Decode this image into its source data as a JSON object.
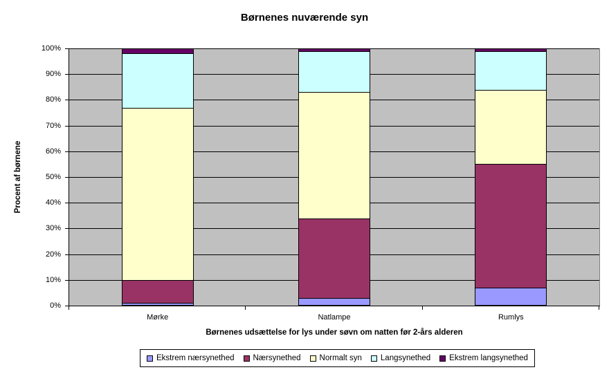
{
  "chart_data": {
    "type": "bar",
    "stacking": "percent",
    "title": "Børnenes nuværende syn",
    "xlabel": "Børnenes udsættelse for lys under søvn om natten før 2-års alderen",
    "ylabel": "Procent af børnene",
    "categories": [
      "Mørke",
      "Natlampe",
      "Rumlys"
    ],
    "series": [
      {
        "name": "Ekstrem nærsynethed",
        "color": "#9999FF",
        "values": [
          1,
          3,
          7
        ]
      },
      {
        "name": "Nærsynethed",
        "color": "#993366",
        "values": [
          9,
          31,
          48
        ]
      },
      {
        "name": "Normalt syn",
        "color": "#FFFFCC",
        "values": [
          67,
          49,
          29
        ]
      },
      {
        "name": "Langsynethed",
        "color": "#CCFFFF",
        "values": [
          21,
          16,
          15
        ]
      },
      {
        "name": "Ekstrem langsynethed",
        "color": "#660066",
        "values": [
          2,
          1,
          1
        ]
      }
    ],
    "ylim": [
      0,
      100
    ],
    "y_tick_step": 10,
    "y_tick_suffix": "%",
    "y_tick_labels": [
      "0%",
      "10%",
      "20%",
      "30%",
      "40%",
      "50%",
      "60%",
      "70%",
      "80%",
      "90%",
      "100%"
    ],
    "grid": true,
    "legend_position": "bottom",
    "colors": {
      "background": "#FFFFFF",
      "plot_bg": "#C0C0C0",
      "plot_border": "#808080",
      "gridline": "#000000",
      "axis": "#000000",
      "bar_border": "#000000",
      "text": "#000000"
    }
  }
}
